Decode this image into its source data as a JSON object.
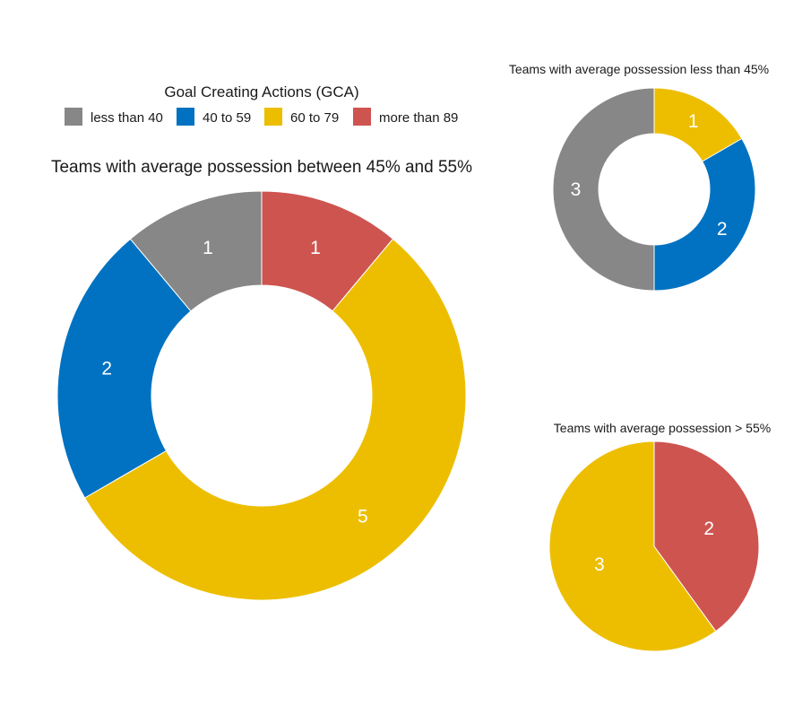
{
  "legend": {
    "title": "Goal Creating Actions (GCA)",
    "items": [
      {
        "label": "less than 40",
        "color": "#878787"
      },
      {
        "label": "40 to 59",
        "color": "#0072C1"
      },
      {
        "label": "60 to 79",
        "color": "#EDBE00"
      },
      {
        "label": "more than 89",
        "color": "#CE5450"
      }
    ]
  },
  "chart_data": [
    {
      "type": "pie",
      "style": "donut",
      "title": "Teams with average possession between 45% and 55%",
      "slices": [
        {
          "label": "more than 89",
          "value": 1,
          "color": "#CE5450"
        },
        {
          "label": "60 to 79",
          "value": 5,
          "color": "#EDBE00"
        },
        {
          "label": "40 to 59",
          "value": 2,
          "color": "#0072C1"
        },
        {
          "label": "less than 40",
          "value": 1,
          "color": "#878787"
        }
      ]
    },
    {
      "type": "pie",
      "style": "donut",
      "title": "Teams with average possession less than 45%",
      "slices": [
        {
          "label": "60 to 79",
          "value": 1,
          "color": "#EDBE00"
        },
        {
          "label": "40 to 59",
          "value": 2,
          "color": "#0072C1"
        },
        {
          "label": "less than 40",
          "value": 3,
          "color": "#878787"
        }
      ]
    },
    {
      "type": "pie",
      "style": "pie",
      "title": "Teams with average possession > 55%",
      "slices": [
        {
          "label": "more than 89",
          "value": 2,
          "color": "#CE5450"
        },
        {
          "label": "60 to 79",
          "value": 3,
          "color": "#EDBE00"
        }
      ]
    }
  ]
}
